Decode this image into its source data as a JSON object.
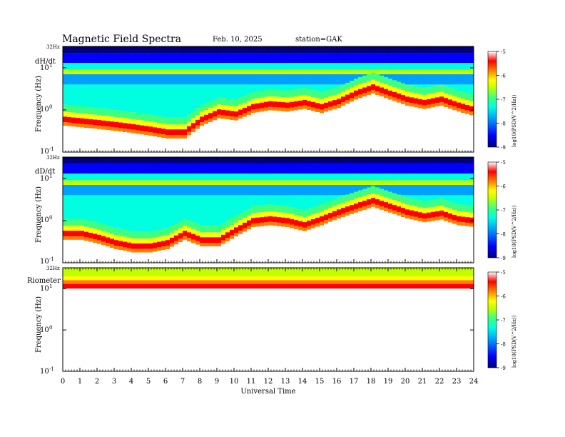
{
  "header": {
    "title": "Magnetic  Field  Spectra",
    "date": "Feb. 10, 2025",
    "station": "station=GAK"
  },
  "colors": {
    "colormap": [
      "#00007f",
      "#0000ff",
      "#00a0ff",
      "#00ffe0",
      "#40ff80",
      "#c0ff00",
      "#ffff00",
      "#ff8000",
      "#ff0000",
      "#ffffff"
    ]
  },
  "chart_data": [
    {
      "type": "heatmap",
      "panel_label": "dH/dt",
      "ylabel": "Frequency  (Hz)",
      "ytop_label": "32Hz",
      "y_ticks": [
        {
          "value": 10,
          "base": "10",
          "exp": "1"
        },
        {
          "value": 1,
          "base": "10",
          "exp": "0"
        },
        {
          "value": 0.1,
          "base": "10",
          "exp": "-1"
        }
      ],
      "yscale": "log",
      "ylim": [
        0.1,
        32
      ],
      "colorbar": {
        "label": "log10(PSD(V^2/Hz))",
        "ticks": [
          "-5",
          "-6",
          "-7",
          "-8",
          "-9"
        ],
        "range": [
          -9,
          -5
        ]
      },
      "ridge_hz": [
        0.6,
        0.55,
        0.5,
        0.45,
        0.4,
        0.35,
        0.3,
        0.3,
        0.6,
        0.9,
        0.8,
        1.2,
        1.4,
        1.3,
        1.5,
        1.2,
        1.6,
        2.5,
        3.5,
        2.5,
        1.8,
        1.5,
        1.8,
        1.3,
        1.0
      ]
    },
    {
      "type": "heatmap",
      "panel_label": "dD/dt",
      "ylabel": "Frequency  (Hz)",
      "ytop_label": "32Hz",
      "y_ticks": [
        {
          "value": 10,
          "base": "10",
          "exp": "1"
        },
        {
          "value": 1,
          "base": "10",
          "exp": "0"
        },
        {
          "value": 0.1,
          "base": "10",
          "exp": "-1"
        }
      ],
      "yscale": "log",
      "ylim": [
        0.1,
        32
      ],
      "colorbar": {
        "label": "log10(PSD(V^2/Hz))",
        "ticks": [
          "-5",
          "-6",
          "-7",
          "-8",
          "-9"
        ],
        "range": [
          -9,
          -5
        ]
      },
      "ridge_hz": [
        0.5,
        0.5,
        0.4,
        0.3,
        0.25,
        0.25,
        0.3,
        0.5,
        0.35,
        0.35,
        0.6,
        1.0,
        1.1,
        1.0,
        0.8,
        1.1,
        1.6,
        2.2,
        3.0,
        2.2,
        1.6,
        1.3,
        1.5,
        1.1,
        1.0
      ]
    },
    {
      "type": "heatmap",
      "panel_label": "Riometer",
      "ylabel": "Frequency  (Hz)",
      "ytop_label": "32Hz",
      "y_ticks": [
        {
          "value": 10,
          "base": "10",
          "exp": "1"
        },
        {
          "value": 1,
          "base": "10",
          "exp": "0"
        },
        {
          "value": 0.1,
          "base": "10",
          "exp": "-1"
        }
      ],
      "yscale": "log",
      "ylim": [
        0.1,
        32
      ],
      "colorbar": {
        "label": "log10(PSD(V^2/Hz))",
        "ticks": [
          "-5",
          "-6",
          "-7",
          "-8",
          "-9"
        ],
        "range": [
          -9,
          -5
        ]
      },
      "x_ticks": [
        "0",
        "1",
        "2",
        "3",
        "4",
        "5",
        "6",
        "7",
        "8",
        "9",
        "10",
        "11",
        "12",
        "13",
        "14",
        "15",
        "16",
        "17",
        "18",
        "19",
        "20",
        "21",
        "22",
        "23",
        "24"
      ],
      "xlabel": "Universal  Time",
      "xlim": [
        0,
        24
      ]
    }
  ]
}
